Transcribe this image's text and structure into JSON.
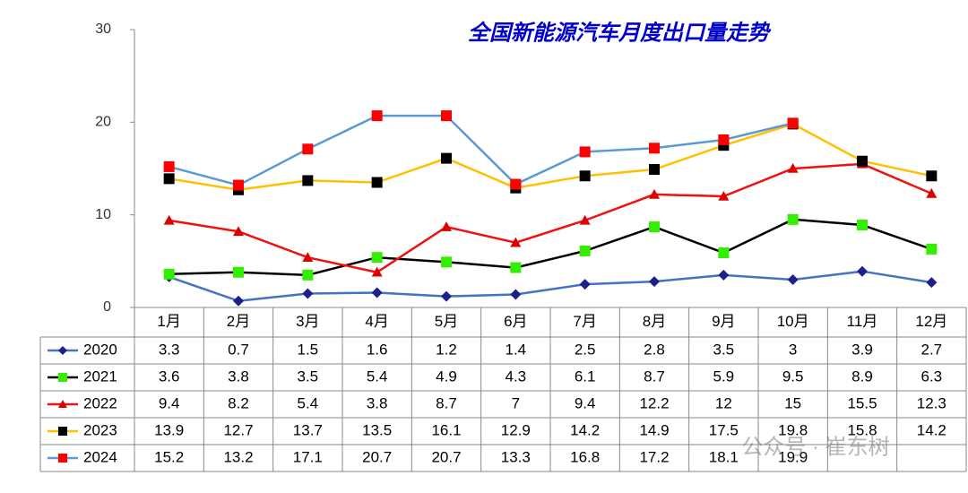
{
  "chart_data": {
    "type": "line",
    "title": "全国新能源汽车月度出口量走势",
    "categories": [
      "1月",
      "2月",
      "3月",
      "4月",
      "5月",
      "6月",
      "7月",
      "8月",
      "9月",
      "10月",
      "11月",
      "12月"
    ],
    "series": [
      {
        "name": "2020",
        "color": "#4472c4",
        "marker_color": "#1f1f8a",
        "marker": "diamond",
        "values": [
          3.3,
          0.7,
          1.5,
          1.6,
          1.2,
          1.4,
          2.5,
          2.8,
          3.5,
          3.0,
          3.9,
          2.7
        ]
      },
      {
        "name": "2021",
        "color": "#000000",
        "marker_color": "#33ee00",
        "marker": "square",
        "values": [
          3.6,
          3.8,
          3.5,
          5.4,
          4.9,
          4.3,
          6.1,
          8.7,
          5.9,
          9.5,
          8.9,
          6.3
        ]
      },
      {
        "name": "2022",
        "color": "#ee1111",
        "marker_color": "#dd0000",
        "marker": "triangle",
        "values": [
          9.4,
          8.2,
          5.4,
          3.8,
          8.7,
          7.0,
          9.4,
          12.2,
          12.0,
          15.0,
          15.5,
          12.3
        ]
      },
      {
        "name": "2023",
        "color": "#ffc000",
        "marker_color": "#000000",
        "marker": "square",
        "values": [
          13.9,
          12.7,
          13.7,
          13.5,
          16.1,
          12.9,
          14.2,
          14.9,
          17.5,
          19.8,
          15.8,
          14.2
        ]
      },
      {
        "name": "2024",
        "color": "#5b9bd5",
        "marker_color": "#ff0000",
        "marker": "square",
        "values": [
          15.2,
          13.2,
          17.1,
          20.7,
          20.7,
          13.3,
          16.8,
          17.2,
          18.1,
          19.9,
          null,
          null
        ]
      }
    ],
    "ylim": [
      0,
      30
    ],
    "yticks": [
      0,
      10,
      20,
      30
    ],
    "grid": false,
    "watermark": "公众号 · 崔东树"
  }
}
